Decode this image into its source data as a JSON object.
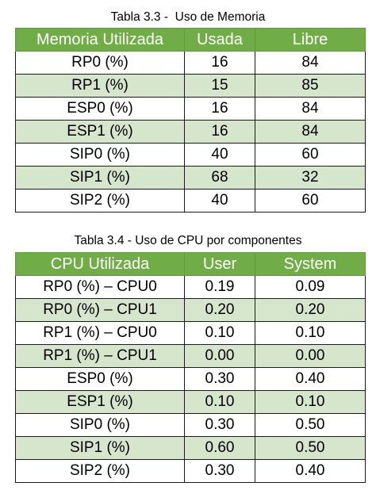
{
  "table1": {
    "caption": "Tabla 3.3 -  Uso de Memoria",
    "headers": [
      "Memoria Utilizada",
      "Usada",
      "Libre"
    ],
    "rows": [
      [
        "RP0 (%)",
        "16",
        "84"
      ],
      [
        "RP1 (%)",
        "15",
        "85"
      ],
      [
        "ESP0 (%)",
        "16",
        "84"
      ],
      [
        "ESP1 (%)",
        "16",
        "84"
      ],
      [
        "SIP0 (%)",
        "40",
        "60"
      ],
      [
        "SIP1 (%)",
        "68",
        "32"
      ],
      [
        "SIP2 (%)",
        "40",
        "60"
      ]
    ]
  },
  "table2": {
    "caption": "Tabla 3.4 - Uso de CPU por componentes",
    "headers": [
      "CPU Utilizada",
      "User",
      "System"
    ],
    "rows": [
      [
        "RP0 (%) – CPU0",
        "0.19",
        "0.09"
      ],
      [
        "RP0 (%) – CPU1",
        "0.20",
        "0.20"
      ],
      [
        "RP1 (%) – CPU0",
        "0.10",
        "0.10"
      ],
      [
        "RP1 (%) – CPU1",
        "0.00",
        "0.00"
      ],
      [
        "ESP0 (%)",
        "0.30",
        "0.40"
      ],
      [
        "ESP1 (%)",
        "0.10",
        "0.10"
      ],
      [
        "SIP0 (%)",
        "0.30",
        "0.50"
      ],
      [
        "SIP1 (%)",
        "0.60",
        "0.50"
      ],
      [
        "SIP2 (%)",
        "0.30",
        "0.40"
      ]
    ]
  },
  "colors": {
    "header_bg": "#70ad47",
    "header_text": "#ffffff",
    "band_bg": "#d6e6cd",
    "plain_bg": "#ffffff"
  }
}
